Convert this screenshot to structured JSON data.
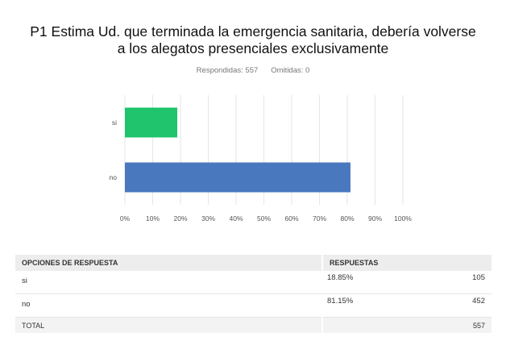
{
  "question": {
    "title_line1": "P1 Estima Ud. que terminada la emergencia sanitaria, debería volverse",
    "title_line2": "a los alegatos presenciales exclusivamente",
    "answered": "Respondidas: 557",
    "skipped": "Omitidas: 0"
  },
  "chart_data": {
    "type": "bar",
    "orientation": "horizontal",
    "categories": [
      "si",
      "no"
    ],
    "values": [
      18.85,
      81.15
    ],
    "colors": [
      "#1fc46d",
      "#4a78bf"
    ],
    "x_ticks": [
      "0%",
      "10%",
      "20%",
      "30%",
      "40%",
      "50%",
      "60%",
      "70%",
      "80%",
      "90%",
      "100%"
    ],
    "xlim": [
      0,
      100
    ],
    "grid": true
  },
  "table": {
    "header_options": "OPCIONES DE RESPUESTA",
    "header_responses": "RESPUESTAS",
    "rows": [
      {
        "option": "si",
        "percent": "18.85%",
        "count": "105"
      },
      {
        "option": "no",
        "percent": "81.15%",
        "count": "452"
      }
    ],
    "total_label": "TOTAL",
    "total_count": "557"
  }
}
